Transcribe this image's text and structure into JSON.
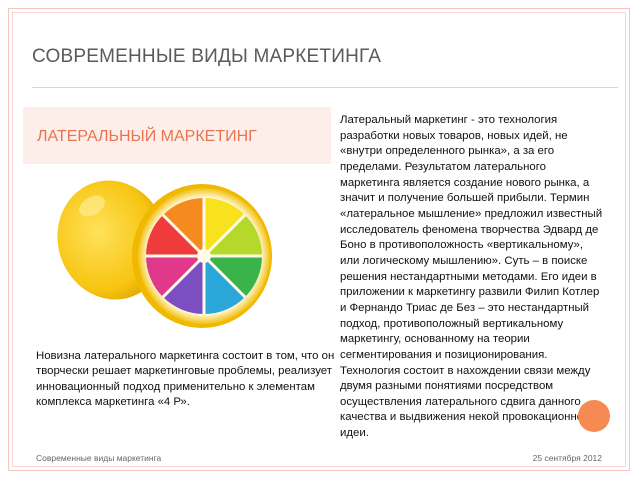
{
  "slide": {
    "title": "СОВРЕМЕННЫЕ ВИДЫ МАРКЕТИНГА",
    "subtitle": "ЛАТЕРАЛЬНЫЙ МАРКЕТИНГ",
    "left_text": "Новизна латерального маркетинга состоит в том, что он творчески решает маркетинговые проблемы, реализует инновационный подход применительно к элементам комплекса маркетинга «4 Р».",
    "right_text": "Латеральный маркетинг - это технология разработки новых товаров, новых идей, не «внутри определенного рынка», а за его пределами. Результатом латерального маркетинга является создание нового рынка, а значит и получение большей прибыли. Термин «латеральное мышление» предложил известный исследователь феномена творчества Эдвард де Боно в противоположность «вертикальному», или логическому мышлению». Суть – в поиске решения нестандартными методами. Его идеи в приложении к маркетингу развили Филип Котлер и Фернандо Триас де Без – это нестандартный подход, противоположный вертикальному маркетингу, основанному на теории сегментирования и позиционирования. Технология состоит в нахождении связи между двумя разными понятиями посредством осуществления латерального сдвига данного качества и выдвижения некой провокационной идеи.",
    "footer_left": "Современные виды маркетинга",
    "footer_right": "25 сентября 2012"
  },
  "colors": {
    "accent": "#ea7350",
    "dot": "#f58a52",
    "title": "#5a5a5a"
  },
  "image": {
    "icon": "rainbow-lemon-icon"
  }
}
